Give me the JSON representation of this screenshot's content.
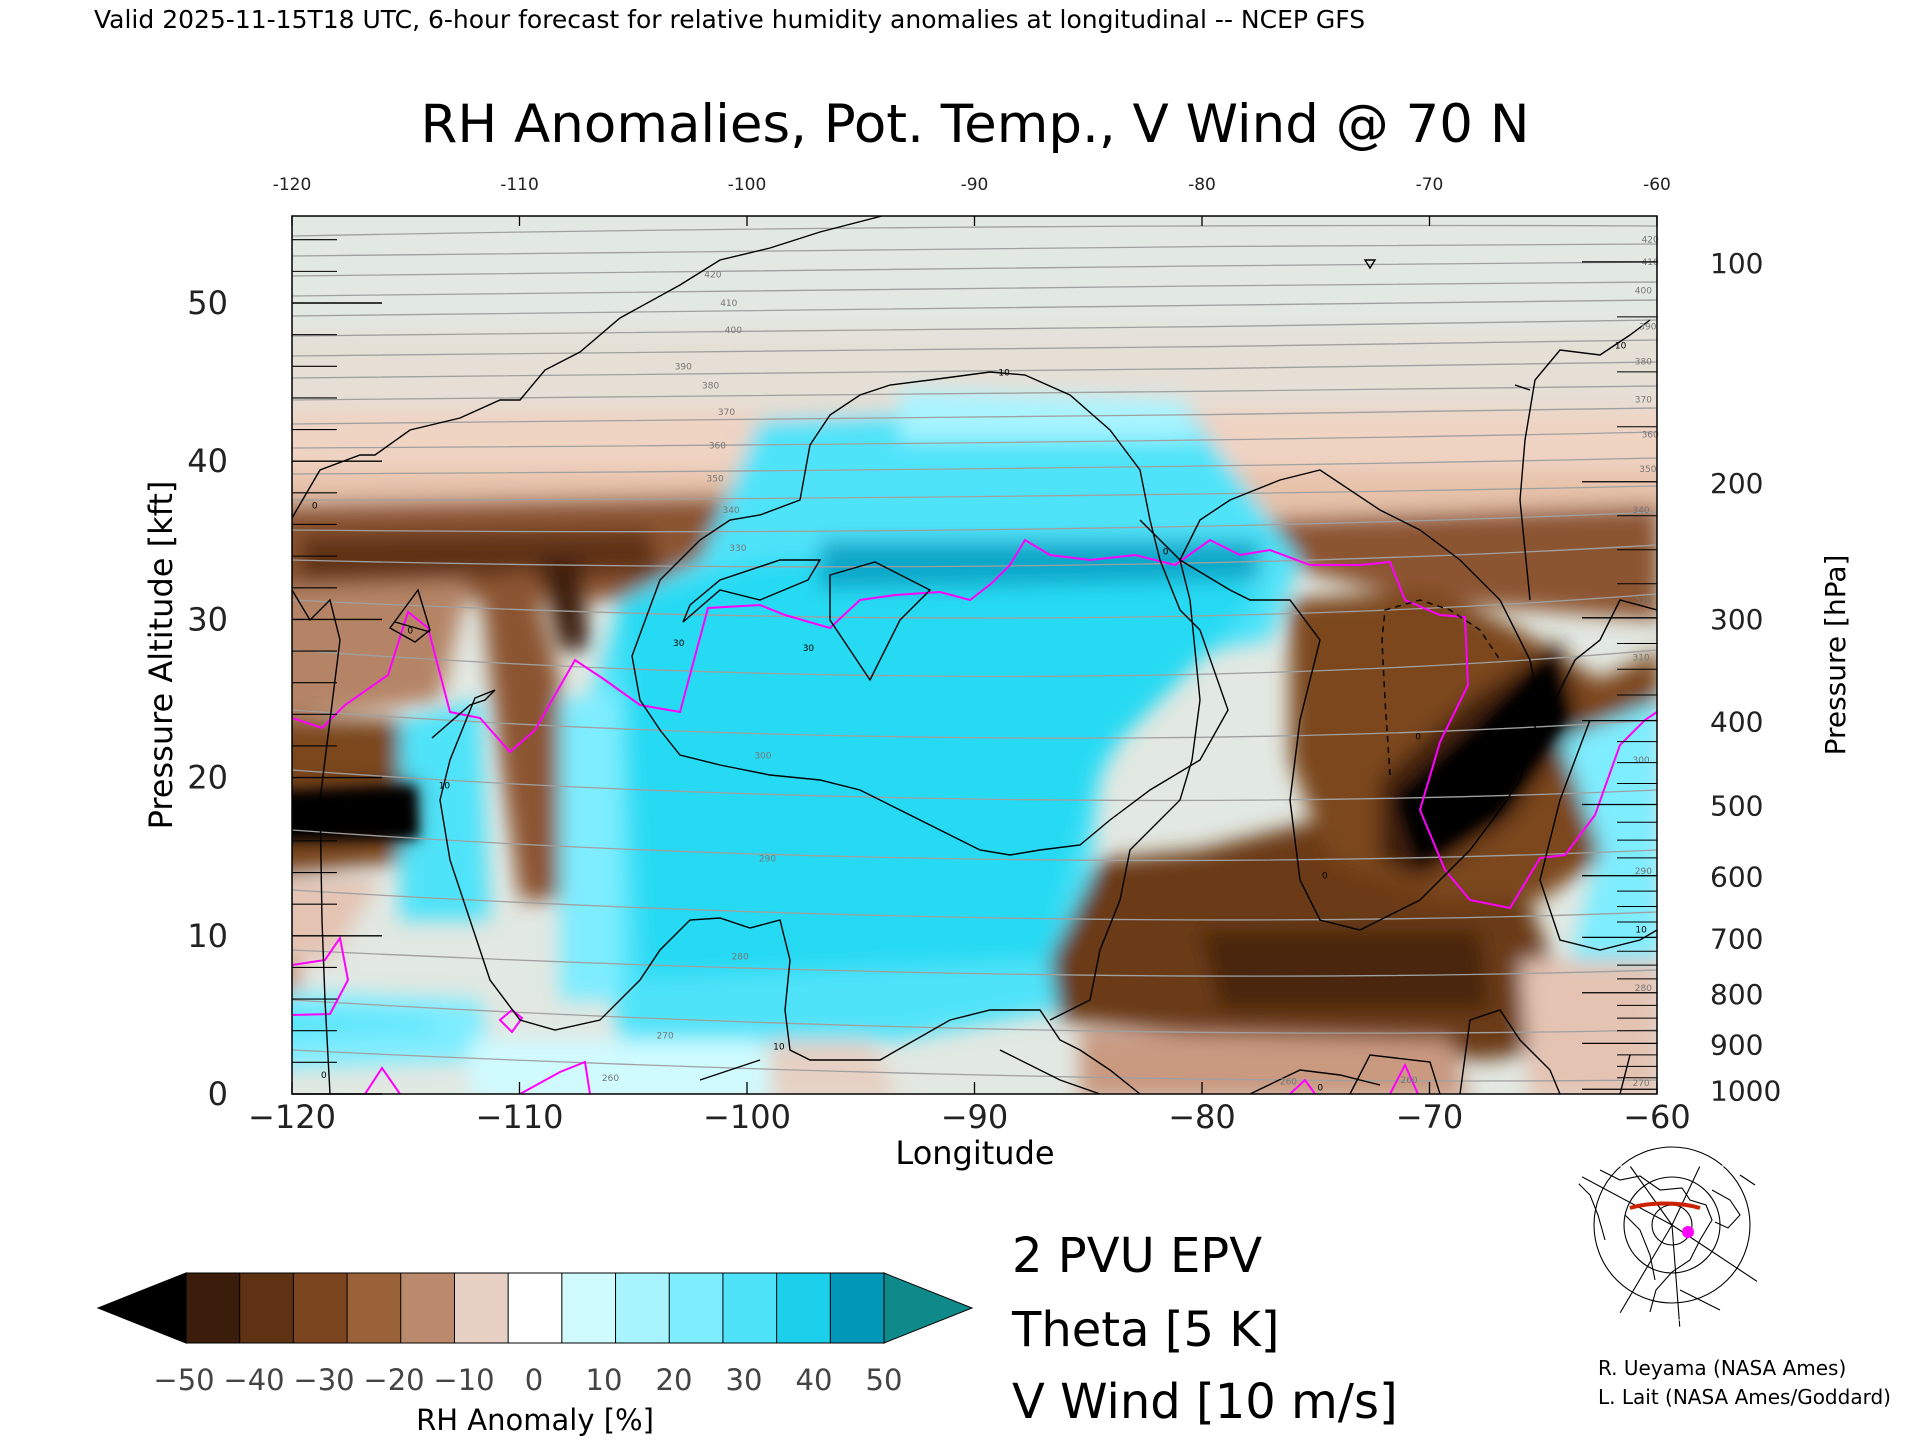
{
  "header": "Valid 2025-11-15T18 UTC, 6-hour forecast for relative humidity anomalies at longitudinal -- NCEP GFS",
  "chart_data": {
    "type": "heatmap",
    "title": "RH Anomalies, Pot. Temp., V Wind @ 70 N",
    "xlabel": "Longitude",
    "ylabel": "Pressure Altitude [kft]",
    "y2label": "Pressure [hPa]",
    "xlim": [
      -120,
      -60
    ],
    "ylim": [
      0,
      55.5
    ],
    "x_ticks": [
      "−120",
      "−110",
      "−100",
      "−90",
      "−80",
      "−70",
      "−60"
    ],
    "x_top_ticks": [
      "-120",
      "-110",
      "-100",
      "-90",
      "-80",
      "-70",
      "-60"
    ],
    "y_ticks": [
      "0",
      "10",
      "20",
      "30",
      "40",
      "50"
    ],
    "pressure_ticks": [
      {
        "label": "100",
        "kft": 52.6
      },
      {
        "label": "200",
        "kft": 38.7
      },
      {
        "label": "300",
        "kft": 30.1
      },
      {
        "label": "400",
        "kft": 23.6
      },
      {
        "label": "500",
        "kft": 18.3
      },
      {
        "label": "600",
        "kft": 13.8
      },
      {
        "label": "700",
        "kft": 9.9
      },
      {
        "label": "800",
        "kft": 6.4
      },
      {
        "label": "900",
        "kft": 3.2
      },
      {
        "label": "1000",
        "kft": 0.3
      }
    ],
    "theta_labels": [
      {
        "label": "420",
        "x": -101.5,
        "kft": 51.8
      },
      {
        "label": "410",
        "x": -100.8,
        "kft": 50.0
      },
      {
        "label": "400",
        "x": -100.6,
        "kft": 48.3
      },
      {
        "label": "390",
        "x": -102.8,
        "kft": 46.0
      },
      {
        "label": "380",
        "x": -101.6,
        "kft": 44.8
      },
      {
        "label": "370",
        "x": -100.9,
        "kft": 43.1
      },
      {
        "label": "360",
        "x": -101.3,
        "kft": 41.0
      },
      {
        "label": "350",
        "x": -101.4,
        "kft": 38.9
      },
      {
        "label": "340",
        "x": -100.7,
        "kft": 36.9
      },
      {
        "label": "330",
        "x": -100.4,
        "kft": 34.5
      },
      {
        "label": "300",
        "x": -99.3,
        "kft": 21.4
      },
      {
        "label": "290",
        "x": -99.1,
        "kft": 14.9
      },
      {
        "label": "280",
        "x": -100.3,
        "kft": 8.7
      },
      {
        "label": "270",
        "x": -103.6,
        "kft": 3.7
      },
      {
        "label": "260",
        "x": -106.0,
        "kft": 1.0
      },
      {
        "label": "260",
        "x": -76.2,
        "kft": 0.8
      },
      {
        "label": "420",
        "x": -60.3,
        "kft": 54.0
      },
      {
        "label": "410",
        "x": -60.3,
        "kft": 52.6
      },
      {
        "label": "400",
        "x": -60.6,
        "kft": 50.8
      },
      {
        "label": "390",
        "x": -60.4,
        "kft": 48.5
      },
      {
        "label": "380",
        "x": -60.6,
        "kft": 46.3
      },
      {
        "label": "370",
        "x": -60.6,
        "kft": 43.9
      },
      {
        "label": "360",
        "x": -60.3,
        "kft": 41.7
      },
      {
        "label": "350",
        "x": -60.4,
        "kft": 39.5
      },
      {
        "label": "340",
        "x": -60.7,
        "kft": 36.9
      },
      {
        "label": "320",
        "x": -60.6,
        "kft": 31.2
      },
      {
        "label": "310",
        "x": -60.7,
        "kft": 27.6
      },
      {
        "label": "300",
        "x": -60.7,
        "kft": 21.1
      },
      {
        "label": "290",
        "x": -60.6,
        "kft": 14.1
      },
      {
        "label": "280",
        "x": -60.6,
        "kft": 6.7
      },
      {
        "label": "270",
        "x": -60.7,
        "kft": 0.7
      },
      {
        "label": "260",
        "x": -70.9,
        "kft": 0.9
      }
    ],
    "wind_labels": [
      {
        "label": "0",
        "x": -119.0,
        "kft": 37.2
      },
      {
        "label": "10",
        "x": -88.7,
        "kft": 45.6
      },
      {
        "label": "30",
        "x": -103.0,
        "kft": 28.5
      },
      {
        "label": "30",
        "x": -97.3,
        "kft": 28.2
      },
      {
        "label": "10",
        "x": -113.3,
        "kft": 19.5
      },
      {
        "label": "0",
        "x": -114.8,
        "kft": 29.3
      },
      {
        "label": "0",
        "x": -81.6,
        "kft": 34.3
      },
      {
        "label": "0",
        "x": -70.5,
        "kft": 22.6
      },
      {
        "label": "0",
        "x": -74.6,
        "kft": 13.8
      },
      {
        "label": "10",
        "x": -98.6,
        "kft": 3.0
      },
      {
        "label": "0",
        "x": -118.6,
        "kft": 1.2
      },
      {
        "label": "0",
        "x": -74.8,
        "kft": 0.4
      },
      {
        "label": "10",
        "x": -61.6,
        "kft": 47.3
      },
      {
        "label": "10",
        "x": -60.7,
        "kft": 10.4
      }
    ],
    "colorbar": {
      "label": "RH Anomaly [%]",
      "ticks": [
        "−50",
        "−40",
        "−30",
        "−20",
        "−10",
        "0",
        "10",
        "20",
        "30",
        "40",
        "50"
      ],
      "colors": [
        "#000000",
        "#3a1d0b",
        "#5e3213",
        "#7b461f",
        "#9a6239",
        "#bb8a6d",
        "#e6d0c3",
        "#ffffff",
        "#cffbff",
        "#a7f4ff",
        "#7eedff",
        "#4fe3f9",
        "#1ccfea",
        "#0097b9",
        "#0e8a8a"
      ]
    },
    "legend": [
      {
        "label": "2 PVU EPV",
        "color": "#ff00ff"
      },
      {
        "label": "Theta [5 K]",
        "color": "#a0a0a0"
      },
      {
        "label": "V Wind [10 m/s]",
        "color": "#000000"
      }
    ]
  },
  "credits": [
    "R. Ueyama (NASA Ames)",
    "L. Lait (NASA Ames/Goddard)"
  ]
}
